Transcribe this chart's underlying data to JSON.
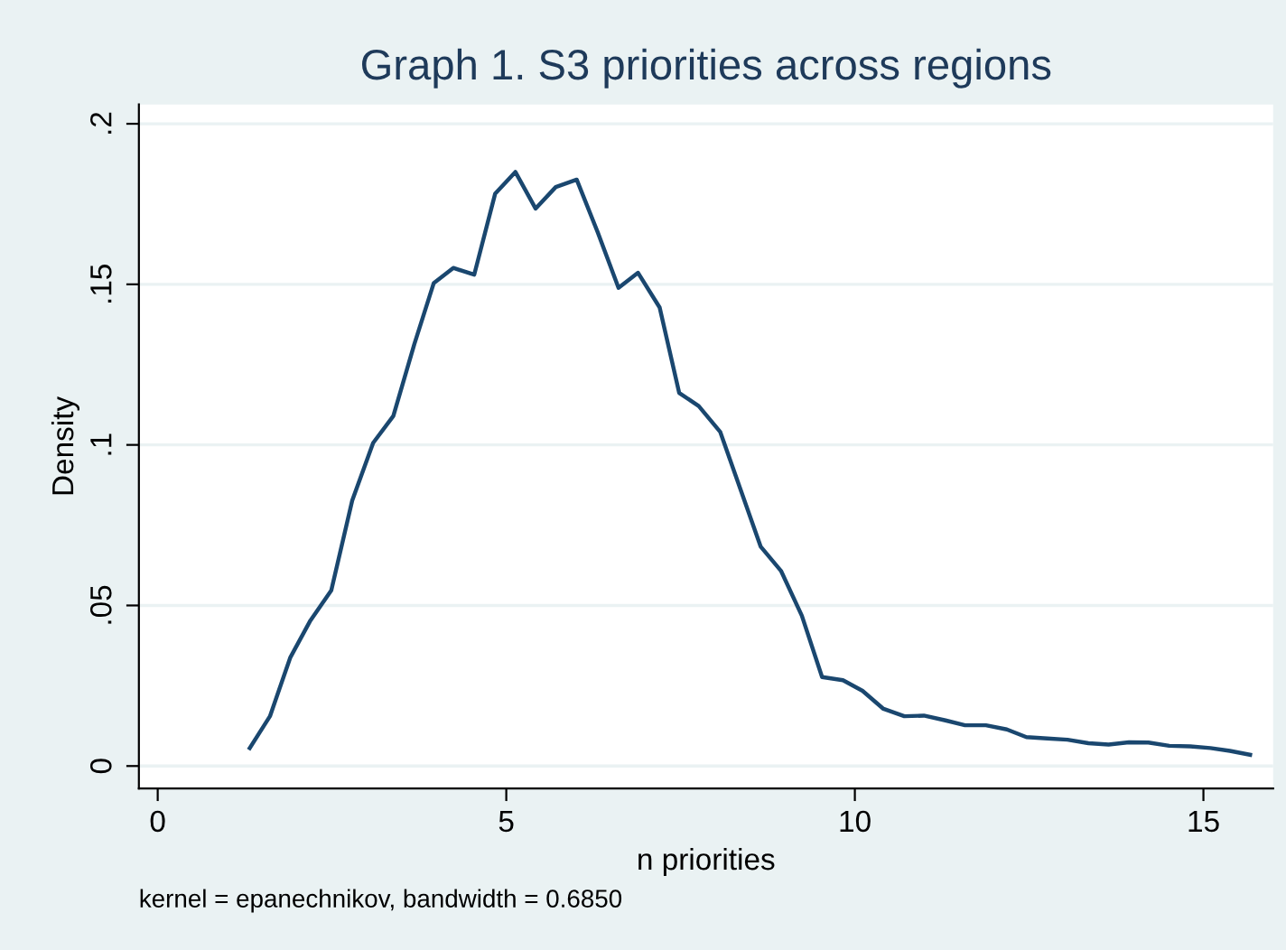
{
  "chart_data": {
    "type": "line",
    "title": "Graph 1. S3 priorities across regions",
    "xlabel": "n priorities",
    "ylabel": "Density",
    "annotations": [
      "kernel = epanechnikov, bandwidth = 0.6850"
    ],
    "series": [
      {
        "color": "#1a476f",
        "x": [
          1.32,
          1.61,
          1.9,
          2.19,
          2.49,
          2.79,
          3.09,
          3.38,
          3.68,
          3.96,
          4.24,
          4.54,
          4.84,
          5.13,
          5.42,
          5.71,
          6.01,
          6.31,
          6.61,
          6.89,
          7.2,
          7.48,
          7.76,
          8.07,
          8.36,
          8.65,
          8.94,
          9.24,
          9.53,
          9.83,
          10.11,
          10.41,
          10.71,
          10.99,
          11.3,
          11.58,
          11.88,
          12.18,
          12.46,
          12.76,
          13.05,
          13.35,
          13.64,
          13.93,
          14.21,
          14.51,
          14.81,
          15.1,
          15.38,
          15.67
        ],
        "values": [
          0.0056,
          0.0155,
          0.0337,
          0.0453,
          0.0547,
          0.0827,
          0.1006,
          0.109,
          0.1313,
          0.1504,
          0.1551,
          0.153,
          0.1782,
          0.185,
          0.1736,
          0.1803,
          0.1826,
          0.1663,
          0.1489,
          0.1536,
          0.1428,
          0.1162,
          0.1121,
          0.104,
          0.0861,
          0.0683,
          0.0608,
          0.0468,
          0.0277,
          0.0267,
          0.0234,
          0.0178,
          0.0155,
          0.0157,
          0.0142,
          0.0127,
          0.0127,
          0.0114,
          0.009,
          0.0086,
          0.0082,
          0.0071,
          0.0067,
          0.0074,
          0.0073,
          0.0063,
          0.0061,
          0.0056,
          0.0047,
          0.0035
        ]
      }
    ],
    "xlim": [
      -0.27,
      16.0
    ],
    "ylim": [
      -0.007,
      0.206
    ],
    "xticks": [
      0,
      5,
      10,
      15
    ],
    "yticks": [
      {
        "value": 0,
        "label": "0"
      },
      {
        "value": 0.05,
        "label": ".05"
      },
      {
        "value": 0.1,
        "label": ".1"
      },
      {
        "value": 0.15,
        "label": ".15"
      },
      {
        "value": 0.2,
        "label": ".2"
      }
    ],
    "grid": "y",
    "line_style": "solid",
    "marker": "none"
  }
}
